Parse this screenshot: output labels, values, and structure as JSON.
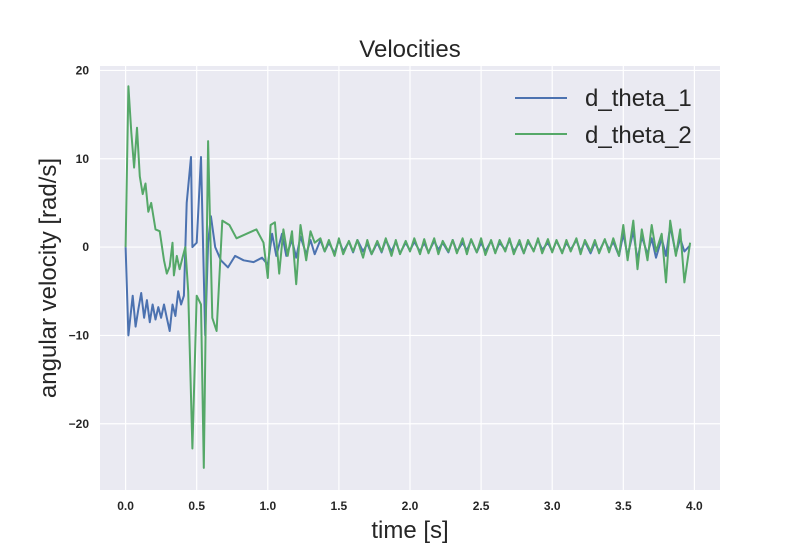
{
  "chart_data": {
    "type": "line",
    "title": "Velocities",
    "xlabel": "time [s]",
    "ylabel": "angular velocity [rad/s]",
    "xlim": [
      -0.18,
      4.18
    ],
    "ylim": [
      -27.5,
      20.5
    ],
    "xticks": [
      0.0,
      0.5,
      1.0,
      1.5,
      2.0,
      2.5,
      3.0,
      3.5,
      4.0
    ],
    "xtick_labels": [
      "0.0",
      "0.5",
      "1.0",
      "1.5",
      "2.0",
      "2.5",
      "3.0",
      "3.5",
      "4.0"
    ],
    "yticks": [
      20,
      10,
      0,
      -10,
      -20
    ],
    "ytick_labels": [
      "20",
      "10",
      "0",
      "−10",
      "−20"
    ],
    "grid": true,
    "legend_position": "top-right",
    "series": [
      {
        "name": "d_theta_1",
        "color": "#4c72b0",
        "x": [
          0.0,
          0.02,
          0.05,
          0.07,
          0.09,
          0.11,
          0.13,
          0.15,
          0.17,
          0.19,
          0.21,
          0.23,
          0.25,
          0.27,
          0.29,
          0.31,
          0.33,
          0.35,
          0.37,
          0.39,
          0.41,
          0.43,
          0.46,
          0.47,
          0.5,
          0.53,
          0.56,
          0.58,
          0.6,
          0.63,
          0.67,
          0.72,
          0.77,
          0.83,
          0.9,
          0.96,
          1.0,
          1.03,
          1.06,
          1.1,
          1.13,
          1.17,
          1.2,
          1.23,
          1.27,
          1.3,
          1.33,
          1.37,
          1.4,
          1.43,
          1.47,
          1.5,
          1.53,
          1.57,
          1.6,
          1.63,
          1.67,
          1.7,
          1.73,
          1.77,
          1.8,
          1.83,
          1.87,
          1.9,
          1.93,
          1.97,
          2.0,
          2.03,
          2.07,
          2.1,
          2.13,
          2.17,
          2.2,
          2.23,
          2.27,
          2.3,
          2.33,
          2.37,
          2.4,
          2.43,
          2.47,
          2.5,
          2.53,
          2.57,
          2.6,
          2.63,
          2.67,
          2.7,
          2.73,
          2.77,
          2.8,
          2.83,
          2.87,
          2.9,
          2.93,
          2.97,
          3.0,
          3.03,
          3.07,
          3.1,
          3.13,
          3.17,
          3.2,
          3.23,
          3.27,
          3.3,
          3.33,
          3.37,
          3.4,
          3.43,
          3.47,
          3.5,
          3.53,
          3.57,
          3.6,
          3.63,
          3.67,
          3.7,
          3.73,
          3.77,
          3.8,
          3.83,
          3.87,
          3.9,
          3.93,
          3.97
        ],
        "y": [
          0.0,
          -10.0,
          -5.5,
          -9.0,
          -7.0,
          -5.2,
          -8.0,
          -6.0,
          -8.5,
          -6.5,
          -8.2,
          -6.8,
          -8.0,
          -6.5,
          -8.0,
          -9.5,
          -6.5,
          -7.8,
          -5.0,
          -6.5,
          -5.5,
          5.0,
          10.2,
          0.0,
          0.5,
          10.2,
          -10.0,
          0.5,
          3.5,
          0.0,
          -1.5,
          -2.3,
          -1.0,
          -1.5,
          -1.7,
          -1.2,
          -2.0,
          1.5,
          -1.0,
          1.5,
          -1.0,
          0.8,
          -1.2,
          1.2,
          -0.8,
          0.8,
          -0.8,
          0.8,
          -0.5,
          0.5,
          -0.7,
          0.8,
          -0.5,
          0.6,
          -0.6,
          0.8,
          -0.5,
          0.4,
          -0.8,
          0.5,
          -0.6,
          0.8,
          -0.5,
          0.6,
          -0.7,
          0.5,
          -0.4,
          0.6,
          -0.5,
          0.5,
          -0.6,
          0.7,
          -0.3,
          0.5,
          -0.6,
          0.8,
          -0.5,
          0.5,
          -0.4,
          0.8,
          -0.6,
          0.5,
          -0.5,
          0.7,
          -0.6,
          0.5,
          -0.3,
          0.8,
          -0.5,
          0.5,
          -0.7,
          0.6,
          -0.4,
          0.8,
          -0.3,
          0.5,
          -0.5,
          0.7,
          -0.6,
          0.5,
          -0.3,
          0.8,
          -0.5,
          0.6,
          -0.7,
          0.5,
          -0.5,
          0.8,
          -0.3,
          0.6,
          -1.0,
          1.5,
          -1.0,
          1.8,
          -1.5,
          1.2,
          -0.8,
          1.0,
          -1.2,
          1.0,
          -1.0,
          2.4,
          -0.8,
          1.0,
          -0.5,
          0.2
        ]
      },
      {
        "name": "d_theta_2",
        "color": "#55a868",
        "x": [
          0.0,
          0.02,
          0.04,
          0.06,
          0.08,
          0.1,
          0.12,
          0.14,
          0.16,
          0.18,
          0.21,
          0.24,
          0.27,
          0.29,
          0.31,
          0.33,
          0.34,
          0.36,
          0.38,
          0.4,
          0.42,
          0.44,
          0.47,
          0.5,
          0.53,
          0.55,
          0.58,
          0.61,
          0.64,
          0.68,
          0.73,
          0.78,
          0.85,
          0.92,
          0.97,
          1.0,
          1.02,
          1.05,
          1.08,
          1.11,
          1.14,
          1.17,
          1.2,
          1.23,
          1.27,
          1.3,
          1.33,
          1.37,
          1.4,
          1.43,
          1.47,
          1.5,
          1.53,
          1.57,
          1.6,
          1.63,
          1.67,
          1.7,
          1.73,
          1.77,
          1.8,
          1.83,
          1.87,
          1.9,
          1.93,
          1.97,
          2.0,
          2.03,
          2.07,
          2.1,
          2.13,
          2.17,
          2.2,
          2.23,
          2.27,
          2.3,
          2.33,
          2.37,
          2.4,
          2.43,
          2.47,
          2.5,
          2.53,
          2.57,
          2.6,
          2.63,
          2.67,
          2.7,
          2.73,
          2.77,
          2.8,
          2.83,
          2.87,
          2.9,
          2.93,
          2.97,
          3.0,
          3.03,
          3.07,
          3.1,
          3.13,
          3.17,
          3.2,
          3.23,
          3.27,
          3.3,
          3.33,
          3.37,
          3.4,
          3.43,
          3.47,
          3.5,
          3.53,
          3.57,
          3.6,
          3.63,
          3.67,
          3.7,
          3.73,
          3.77,
          3.8,
          3.83,
          3.87,
          3.9,
          3.93,
          3.97
        ],
        "y": [
          0.0,
          18.2,
          13.0,
          9.0,
          13.5,
          8.0,
          6.0,
          7.2,
          4.0,
          5.0,
          2.0,
          1.8,
          -1.5,
          -3.0,
          -2.2,
          0.5,
          -3.2,
          -1.0,
          -2.5,
          -1.2,
          0.0,
          -5.0,
          -22.8,
          -5.5,
          -6.5,
          -25.0,
          12.0,
          -8.0,
          -9.5,
          3.0,
          2.5,
          1.0,
          1.5,
          2.0,
          0.5,
          -3.5,
          2.5,
          2.8,
          -3.0,
          2.0,
          -1.0,
          1.8,
          -4.2,
          2.5,
          -1.5,
          1.8,
          0.5,
          1.0,
          -0.5,
          0.8,
          -1.0,
          1.0,
          -0.8,
          0.7,
          -0.5,
          0.8,
          -1.2,
          0.8,
          -0.8,
          0.7,
          -0.5,
          1.0,
          -1.0,
          0.8,
          -0.8,
          0.7,
          -0.5,
          1.0,
          -0.8,
          0.9,
          -0.7,
          1.0,
          -0.8,
          0.7,
          -0.5,
          0.8,
          -0.7,
          1.0,
          -0.8,
          0.9,
          -0.6,
          1.0,
          -0.9,
          0.8,
          -0.7,
          0.8,
          -0.5,
          1.0,
          -0.8,
          0.8,
          -0.7,
          0.8,
          -0.5,
          1.0,
          -0.7,
          0.9,
          -0.6,
          0.8,
          -0.7,
          0.8,
          -0.5,
          1.0,
          -0.8,
          0.8,
          -0.5,
          0.8,
          -0.7,
          0.9,
          -0.6,
          1.0,
          -1.0,
          2.5,
          -1.5,
          3.0,
          -2.5,
          2.0,
          -1.5,
          2.5,
          -0.5,
          1.5,
          -4.0,
          3.0,
          -1.0,
          2.0,
          -4.0,
          0.5
        ]
      }
    ]
  }
}
